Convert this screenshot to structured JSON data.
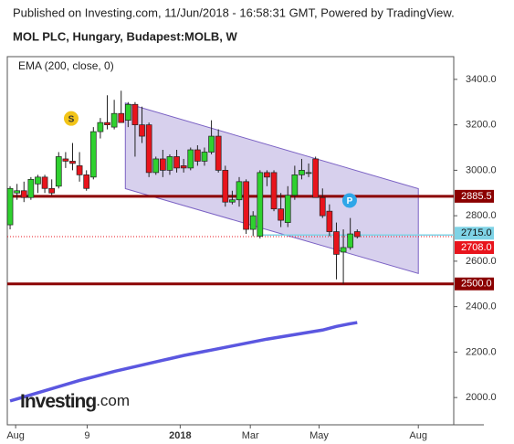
{
  "header": "Published on Investing.com, 11/Jun/2018 - 16:58:31 GMT, Powered by TradingView.",
  "chart_data": {
    "type": "candlestick",
    "title": "MOL PLC, Hungary, Budapest:MOLB, W",
    "indicator_label": "EMA (200, close, 0)",
    "logo": {
      "brand": "Investing",
      "suffix": ".com"
    },
    "x": [
      0,
      1,
      2,
      3,
      4,
      5,
      6,
      7,
      8,
      9,
      10,
      11,
      12,
      13,
      14,
      15,
      16,
      17,
      18,
      19,
      20,
      21,
      22,
      23,
      24,
      25,
      26,
      27,
      28,
      29,
      30,
      31,
      32,
      33,
      34,
      35,
      36,
      37,
      38,
      39,
      40,
      41,
      42,
      43,
      44,
      45,
      46,
      47,
      48,
      49,
      50
    ],
    "open": [
      2760,
      2900,
      2910,
      2880,
      2940,
      2970,
      2920,
      2930,
      3050,
      3040,
      3020,
      2980,
      2970,
      3170,
      3210,
      3190,
      3250,
      3220,
      3290,
      3200,
      3200,
      2990,
      3050,
      3000,
      3060,
      3020,
      3010,
      3090,
      3040,
      3080,
      3150,
      3000,
      2860,
      2870,
      2950,
      2740,
      2710,
      2990,
      2990,
      2830,
      2770,
      2890,
      2980,
      2990,
      3050,
      2880,
      2820,
      2730,
      2640,
      2660,
      2730
    ],
    "high": [
      2930,
      2940,
      2950,
      2970,
      2980,
      2980,
      2960,
      3080,
      3080,
      3120,
      3080,
      3000,
      3190,
      3230,
      3330,
      3310,
      3350,
      3300,
      3300,
      3280,
      3210,
      3060,
      3090,
      3070,
      3090,
      3050,
      3100,
      3110,
      3100,
      3220,
      3180,
      3020,
      2910,
      2970,
      2960,
      2820,
      3000,
      3000,
      3000,
      2900,
      2930,
      3020,
      3050,
      3030,
      3060,
      2920,
      2850,
      2770,
      2740,
      2790,
      2740
    ],
    "low": [
      2740,
      2870,
      2860,
      2870,
      2900,
      2900,
      2890,
      2920,
      3010,
      3000,
      2950,
      2910,
      2960,
      3140,
      3180,
      3180,
      3220,
      3190,
      3060,
      3120,
      2970,
      2980,
      2970,
      2980,
      2990,
      2990,
      3000,
      3020,
      3020,
      3070,
      2990,
      2840,
      2850,
      2840,
      2720,
      2710,
      2700,
      2930,
      2820,
      2750,
      2750,
      2870,
      2960,
      2970,
      2880,
      2790,
      2710,
      2520,
      2500,
      2650,
      2700
    ],
    "close": [
      2920,
      2910,
      2880,
      2960,
      2970,
      2920,
      2900,
      3060,
      3040,
      3030,
      2980,
      2920,
      3170,
      3210,
      3200,
      3250,
      3210,
      3290,
      3200,
      3150,
      2990,
      3050,
      3000,
      3060,
      3010,
      3010,
      3090,
      3040,
      3080,
      3150,
      3000,
      2860,
      2870,
      2950,
      2740,
      2800,
      2990,
      2970,
      2830,
      2780,
      2890,
      2980,
      3000,
      2990,
      2880,
      2800,
      2730,
      2630,
      2660,
      2720,
      2708
    ],
    "up_color": "#2fd12f",
    "down_color": "#e8141c",
    "ema": {
      "color": "#5b57e0",
      "values": [
        1985,
        1994,
        2003,
        2012,
        2021,
        2030,
        2039,
        2048,
        2057,
        2066,
        2075,
        2083,
        2091,
        2099,
        2107,
        2115,
        2122,
        2129,
        2136,
        2143,
        2150,
        2157,
        2164,
        2171,
        2178,
        2185,
        2191,
        2197,
        2203,
        2209,
        2215,
        2221,
        2227,
        2233,
        2239,
        2245,
        2251,
        2257,
        2262,
        2267,
        2272,
        2277,
        2282,
        2287,
        2292,
        2297,
        2305,
        2313,
        2319,
        2325,
        2330
      ]
    },
    "channel": {
      "x": [
        16.6,
        58.8
      ],
      "upper": [
        3296,
        2919
      ],
      "lower": [
        2919,
        2546
      ],
      "color": "#7b62c4"
    },
    "levels": [
      {
        "value": 2885.5,
        "label": "2885.5",
        "color": "#8b0000",
        "style": "solid"
      },
      {
        "value": 2500,
        "label": "2500.0",
        "color": "#8b0000",
        "style": "solid"
      },
      {
        "value": 2715,
        "label": "2715.0",
        "color": "#7fd3e6",
        "style": "cyan"
      },
      {
        "value": 2708,
        "label": "2708.0",
        "color": "#e8141c",
        "style": "dotted"
      }
    ],
    "markers": [
      {
        "x": 8.8,
        "y": 3228,
        "label": "S",
        "color": "#f2c418"
      },
      {
        "x": 48.9,
        "y": 2867,
        "label": "P",
        "color": "#2fa6e8"
      }
    ],
    "xlim": [
      -0.4,
      63.9
    ],
    "xticks": [
      {
        "value": 0.8,
        "label": "Aug"
      },
      {
        "value": 11.1,
        "label": "9"
      },
      {
        "value": 24.5,
        "label": "2018"
      },
      {
        "value": 34.6,
        "label": "Mar"
      },
      {
        "value": 44.5,
        "label": "May"
      },
      {
        "value": 58.8,
        "label": "Aug"
      }
    ],
    "ylim": [
      1880,
      3500
    ],
    "yticks": [
      {
        "value": 2000,
        "label": "2000.0"
      },
      {
        "value": 2200,
        "label": "2200.0"
      },
      {
        "value": 2400,
        "label": "2400.0"
      },
      {
        "value": 2600,
        "label": "2600.0"
      },
      {
        "value": 2800,
        "label": "2800.0"
      },
      {
        "value": 3000,
        "label": "3000.0"
      },
      {
        "value": 3200,
        "label": "3200.0"
      },
      {
        "value": 3400,
        "label": "3400.0"
      }
    ]
  }
}
